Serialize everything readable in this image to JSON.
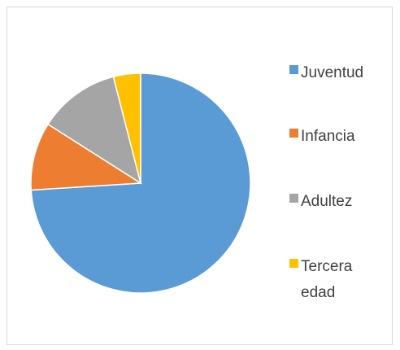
{
  "chart_data": {
    "type": "pie",
    "categories": [
      "Juventud",
      "Infancia",
      "Adultez",
      "Tercera edad"
    ],
    "values": [
      74,
      10,
      12,
      4
    ],
    "colors": [
      "#5b9bd5",
      "#ed7d31",
      "#a5a5a5",
      "#ffc000"
    ],
    "start_angle": 0,
    "direction": "clockwise",
    "legend": "right"
  }
}
